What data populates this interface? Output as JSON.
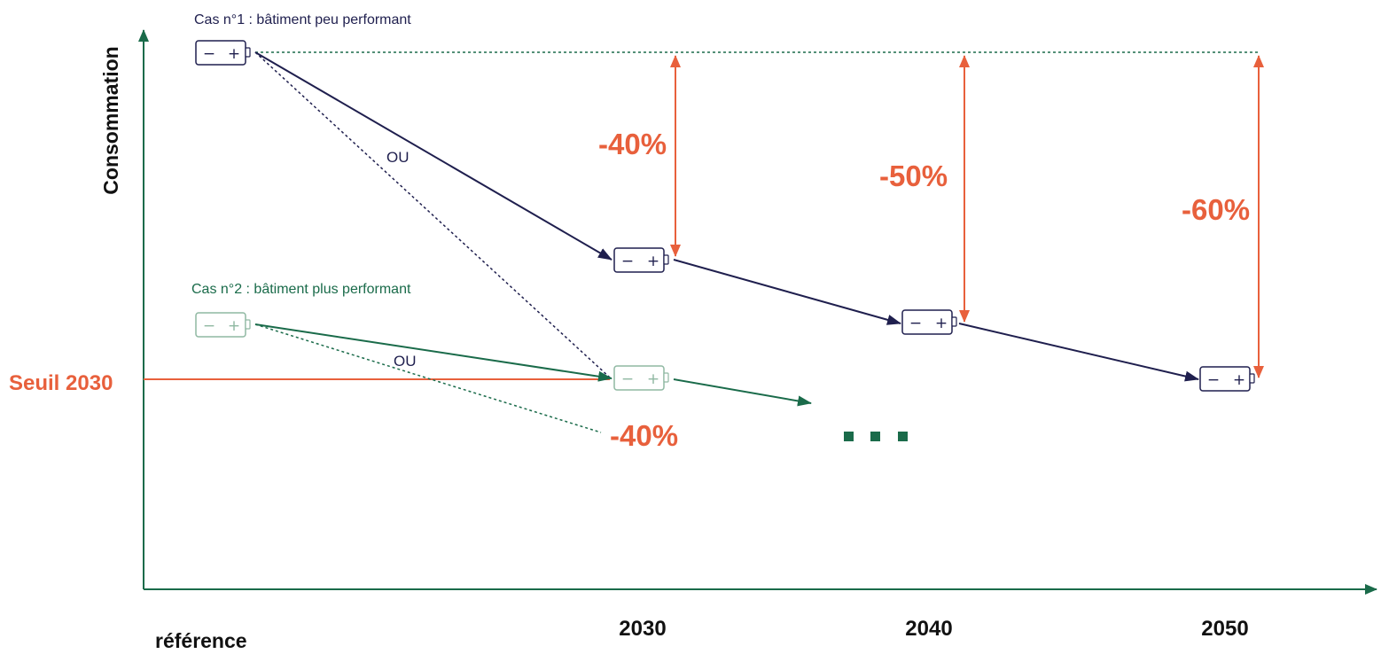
{
  "axes": {
    "y_label": "Consommation",
    "x_labels": {
      "reference": "référence",
      "y2030": "2030",
      "y2040": "2040",
      "y2050": "2050"
    }
  },
  "threshold": {
    "label": "Seuil 2030"
  },
  "case1": {
    "label": "Cas n°1 : bâtiment peu performant",
    "or_label": "OU",
    "reductions": {
      "r2030": "-40%",
      "r2040": "-50%",
      "r2050": "-60%"
    }
  },
  "case2": {
    "label": "Cas n°2 : bâtiment plus performant",
    "or_label": "OU",
    "reduction": "-40%",
    "continuation": "..."
  },
  "battery": {
    "minus": "−",
    "plus": "+"
  },
  "colors": {
    "navy": "#1f1f4e",
    "green": "#1a6b4a",
    "light_green": "#8fb8a2",
    "orange": "#e8603c",
    "axis": "#1a6b4a"
  }
}
